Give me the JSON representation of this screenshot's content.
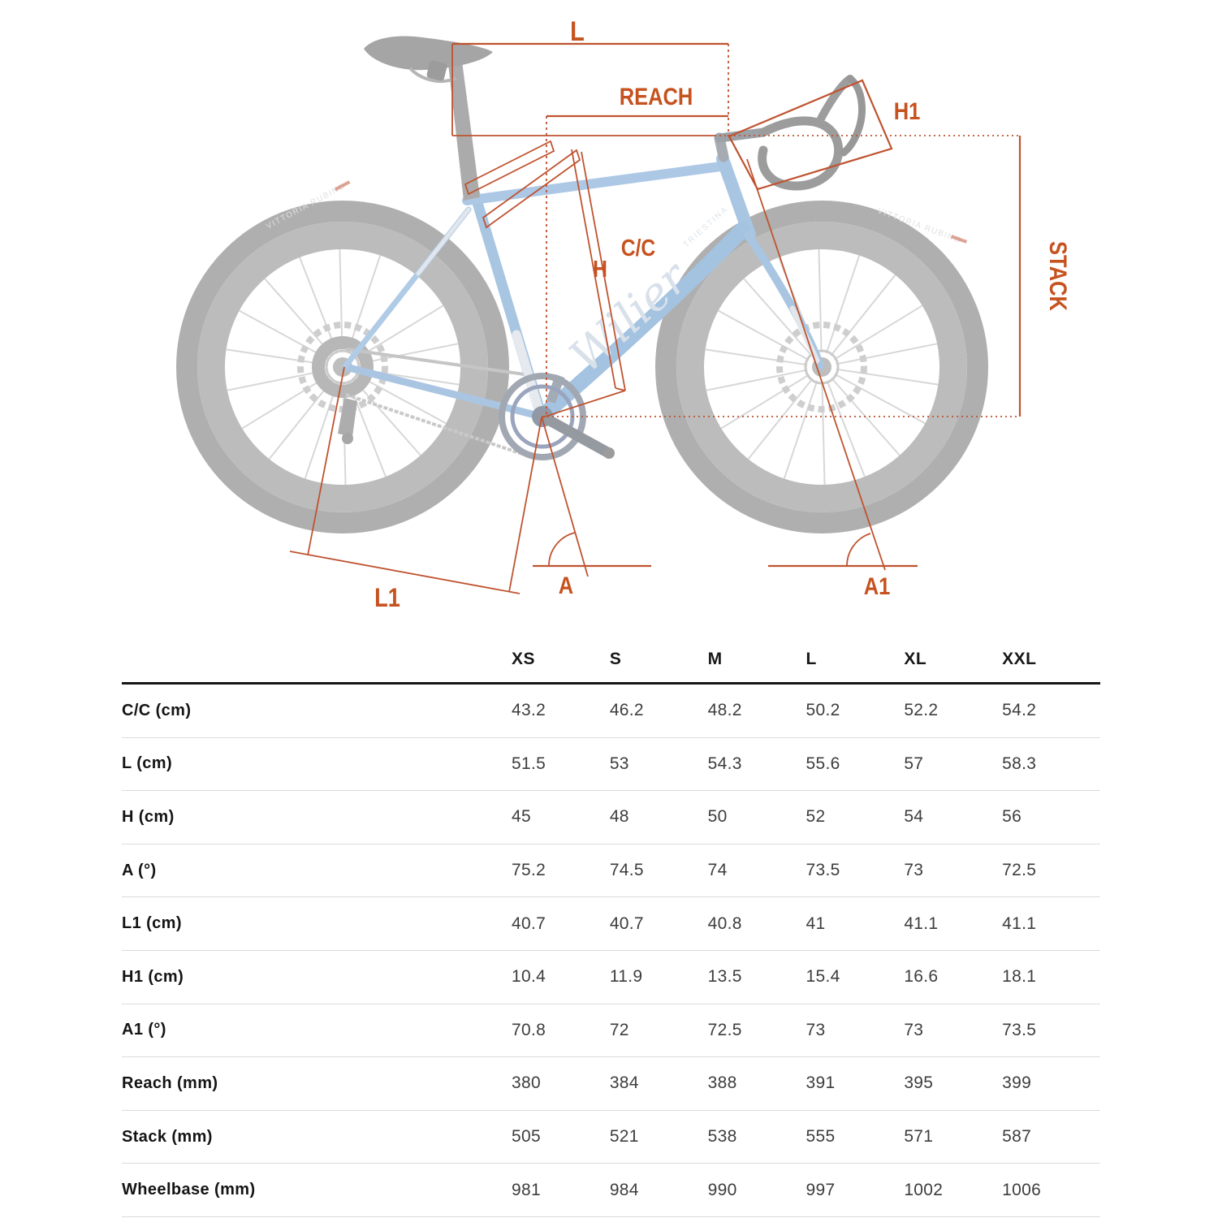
{
  "diagram": {
    "annotation_color": "#bf5330",
    "label_color": "#c6521f",
    "labels": {
      "top_tube_l": "L",
      "reach": "REACH",
      "head_tube_h1": "H1",
      "seat_tube_cc": "C/C",
      "frame_height_h": "H",
      "stack": "STACK",
      "chainstay_l1": "L1",
      "seat_angle_a": "A",
      "head_angle_a1": "A1"
    },
    "bike": {
      "brand_logo": "Wilier",
      "brand_sub": "TRIESTINA",
      "seat_tube_logo": "Wilier",
      "tire_label": "VITTORIA RUBINO"
    }
  },
  "table": {
    "size_headers": [
      "XS",
      "S",
      "M",
      "L",
      "XL",
      "XXL"
    ],
    "rows": [
      {
        "label": "C/C (cm)",
        "values": [
          "43.2",
          "46.2",
          "48.2",
          "50.2",
          "52.2",
          "54.2"
        ]
      },
      {
        "label": "L (cm)",
        "values": [
          "51.5",
          "53",
          "54.3",
          "55.6",
          "57",
          "58.3"
        ]
      },
      {
        "label": "H (cm)",
        "values": [
          "45",
          "48",
          "50",
          "52",
          "54",
          "56"
        ]
      },
      {
        "label": "A (°)",
        "values": [
          "75.2",
          "74.5",
          "74",
          "73.5",
          "73",
          "72.5"
        ]
      },
      {
        "label": "L1 (cm)",
        "values": [
          "40.7",
          "40.7",
          "40.8",
          "41",
          "41.1",
          "41.1"
        ]
      },
      {
        "label": "H1 (cm)",
        "values": [
          "10.4",
          "11.9",
          "13.5",
          "15.4",
          "16.6",
          "18.1"
        ]
      },
      {
        "label": "A1 (°)",
        "values": [
          "70.8",
          "72",
          "72.5",
          "73",
          "73",
          "73.5"
        ]
      },
      {
        "label": "Reach (mm)",
        "values": [
          "380",
          "384",
          "388",
          "391",
          "395",
          "399"
        ]
      },
      {
        "label": "Stack (mm)",
        "values": [
          "505",
          "521",
          "538",
          "555",
          "571",
          "587"
        ]
      },
      {
        "label": "Wheelbase (mm)",
        "values": [
          "981",
          "984",
          "990",
          "997",
          "1002",
          "1006"
        ]
      }
    ]
  }
}
